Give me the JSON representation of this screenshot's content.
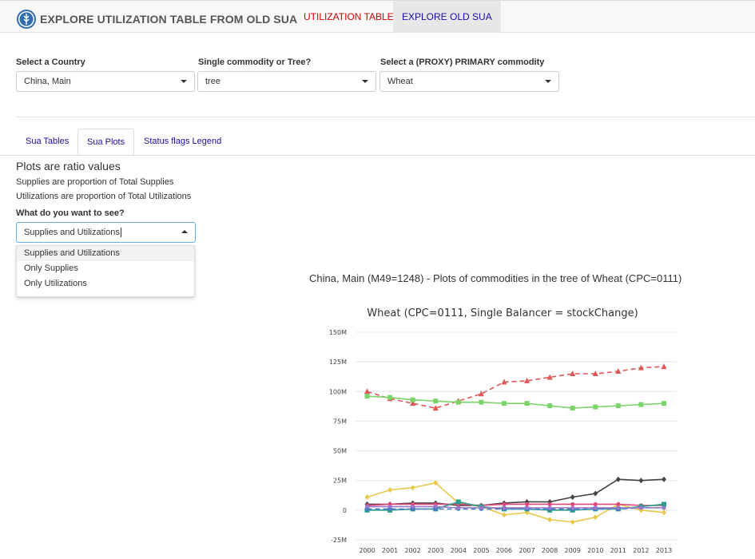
{
  "header": {
    "title": "EXPLORE UTILIZATION TABLE FROM OLD SUA",
    "nav": [
      "UTILIZATION TABLE",
      "EXPLORE OLD SUA"
    ]
  },
  "selectors": {
    "country": {
      "label": "Select a Country",
      "value": "China, Main"
    },
    "mode": {
      "label": "Single commodity or Tree?",
      "value": "tree"
    },
    "commodity": {
      "label": "Select a (PROXY) PRIMARY commodity",
      "value": "Wheat"
    }
  },
  "tabs": [
    "Sua Tables",
    "Sua Plots",
    "Status flags Legend"
  ],
  "panel": {
    "heading": "Plots are ratio values",
    "note1": "Supplies are proportion of Total Supplies",
    "note2": "Utilizations are proportion of Total Utilizations",
    "question": "What do you want to see?",
    "view_value": "Supplies and Utilizations",
    "options": [
      "Supplies and Utilizations",
      "Only Supplies",
      "Only Utilizations"
    ]
  },
  "plot": {
    "title": "China, Main (M49=1248) - Plots of commodities in the tree of Wheat (CPC=0111)"
  },
  "chart_data": {
    "type": "line",
    "title": "Wheat (CPC=0111, Single Balancer = stockChange)",
    "x": [
      2000,
      2001,
      2002,
      2003,
      2004,
      2005,
      2006,
      2007,
      2008,
      2009,
      2010,
      2011,
      2012,
      2013
    ],
    "y_ticks": [
      "150M",
      "125M",
      "100M",
      "75M",
      "50M",
      "25M",
      "0",
      "-25M"
    ],
    "ylim": [
      -25000000,
      150000000
    ],
    "grid": true,
    "series": [
      {
        "color": "#e05555",
        "dashed": true,
        "marker": "triangle",
        "values": [
          100,
          94,
          90,
          86,
          92,
          98,
          108,
          109,
          112,
          115,
          115,
          117,
          120,
          121
        ]
      },
      {
        "color": "#7bd36a",
        "dashed": false,
        "marker": "square",
        "values": [
          96,
          95,
          93,
          92,
          91,
          91,
          90,
          90,
          88,
          86,
          87,
          88,
          89,
          90
        ]
      },
      {
        "color": "#444444",
        "dashed": false,
        "marker": "diamond",
        "values": [
          5,
          5,
          6,
          6,
          4,
          4,
          6,
          7,
          7,
          11,
          14,
          26,
          25,
          26
        ]
      },
      {
        "color": "#e8c84a",
        "dashed": false,
        "marker": "diamond",
        "values": [
          11,
          17,
          19,
          23,
          6,
          3,
          -4,
          -2,
          -8,
          -10,
          -6,
          5,
          0,
          -2
        ]
      },
      {
        "color": "#e0487a",
        "dashed": false,
        "marker": "circle",
        "values": [
          4,
          5,
          5,
          5,
          5,
          4,
          5,
          5,
          5,
          5,
          5,
          5,
          4,
          4
        ]
      },
      {
        "color": "#2a9d8f",
        "dashed": false,
        "marker": "square",
        "values": [
          0,
          0,
          1,
          1,
          7,
          3,
          1,
          1,
          0,
          0,
          1,
          1,
          3,
          5
        ]
      },
      {
        "color": "#4a78c8",
        "dashed": true,
        "marker": "circle",
        "values": [
          1,
          1,
          1,
          1,
          1,
          1,
          1,
          1,
          1,
          1,
          1,
          1,
          2,
          2
        ]
      },
      {
        "color": "#9b77c8",
        "dashed": false,
        "marker": "circle",
        "values": [
          3,
          3,
          3,
          3,
          2,
          2,
          2,
          2,
          2,
          2,
          2,
          2,
          2,
          2
        ]
      }
    ]
  }
}
